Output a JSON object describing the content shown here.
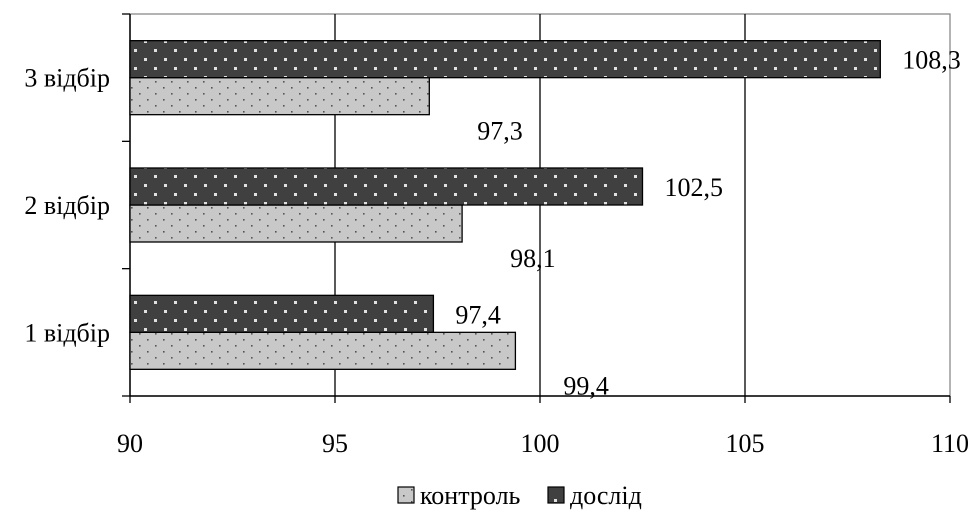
{
  "chart_data": {
    "type": "bar",
    "orientation": "horizontal",
    "categories": [
      "1 відбір",
      "2 відбір",
      "3 відбір"
    ],
    "series": [
      {
        "name": "контроль",
        "values": [
          99.4,
          98.1,
          97.3
        ],
        "labels": [
          "99,4",
          "98,1",
          "97,3"
        ],
        "color": "#c8c8c8",
        "pattern_color": "#555555"
      },
      {
        "name": "дослід",
        "values": [
          97.4,
          102.5,
          108.3
        ],
        "labels": [
          "97,4",
          "102,5",
          "108,3"
        ],
        "color": "#404040",
        "pattern_color": "#e0e0e0"
      }
    ],
    "x_ticks": [
      "90",
      "95",
      "100",
      "105",
      "110"
    ],
    "xlim": [
      90,
      110
    ],
    "grid": "vertical",
    "legend_position": "bottom",
    "title": "",
    "xlabel": "",
    "ylabel": ""
  }
}
